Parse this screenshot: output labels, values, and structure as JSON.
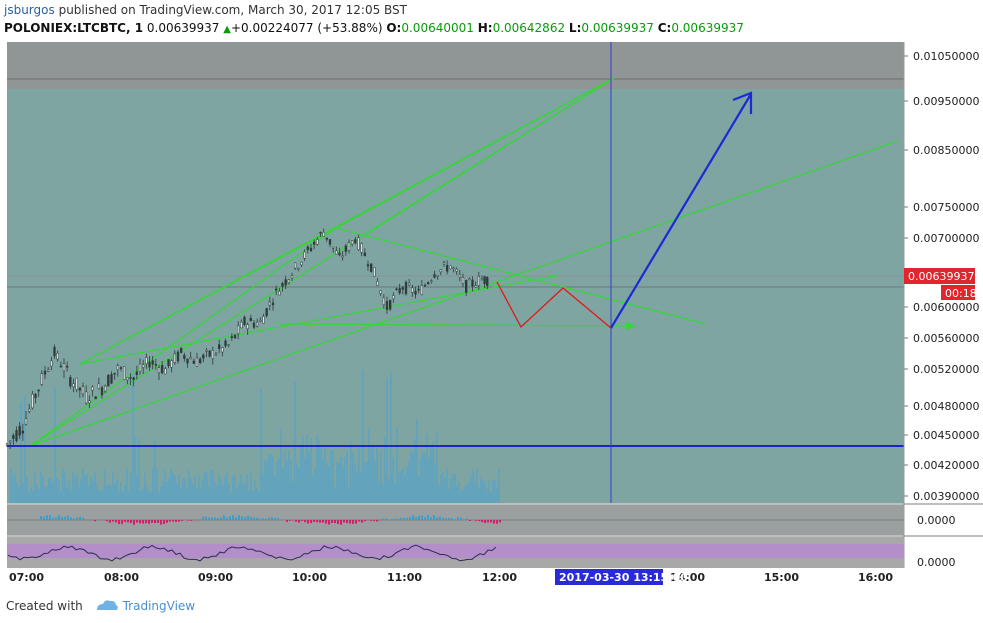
{
  "header": {
    "user": "jsburgos",
    "published": "published on TradingView.com, March 30, 2017 12:05 BST",
    "symbol": "POLONIEX:LTCBTC, 1",
    "last": "0.00639937",
    "change_arrow": "▲",
    "change": "+0.00224077 (+53.88%)",
    "o_label": "O:",
    "o_value": "0.00640001",
    "h_label": "H:",
    "h_value": "0.00642862",
    "l_label": "L:",
    "l_value": "0.00639937",
    "c_label": "C:",
    "c_value": "0.00639937"
  },
  "footer": {
    "created_with": "Created with",
    "brand": "TradingView"
  },
  "chart_data": {
    "type": "line",
    "title": "POLONIEX:LTCBTC, 1",
    "x_axis_labels": [
      "07:00",
      "08:00",
      "09:00",
      "10:00",
      "11:00",
      "12:00",
      "14:00",
      "15:00",
      "16:00"
    ],
    "x_axis_highlight_label": "2017-03-30 13:15:00",
    "y_axis_labels": [
      "0.01050000",
      "0.00950000",
      "0.00850000",
      "0.00750000",
      "0.00700000",
      "0.00600000",
      "0.00560000",
      "0.00520000",
      "0.00480000",
      "0.00450000",
      "0.00420000",
      "0.00390000"
    ],
    "y_ticks": [
      0.0105,
      0.0095,
      0.0085,
      0.0075,
      0.007,
      0.006,
      0.0056,
      0.0052,
      0.0048,
      0.0045,
      0.0042,
      0.0039
    ],
    "current_price_label": "0.00639937",
    "countdown_label": "00:18",
    "current_price": 0.00639937,
    "projection_target_time": "2017-03-30 13:15:00",
    "price_series": {
      "x": [
        "07:00",
        "07:10",
        "07:20",
        "07:30",
        "07:40",
        "07:50",
        "08:00",
        "08:10",
        "08:20",
        "08:30",
        "08:40",
        "08:50",
        "09:00",
        "09:10",
        "09:20",
        "09:30",
        "09:40",
        "09:50",
        "10:00",
        "10:10",
        "10:20",
        "10:30",
        "10:40",
        "10:50",
        "11:00",
        "11:10",
        "11:20",
        "11:30",
        "11:40",
        "11:50",
        "12:00",
        "12:05"
      ],
      "y": [
        0.0044,
        0.0046,
        0.005,
        0.0054,
        0.0051,
        0.0049,
        0.005,
        0.0052,
        0.0051,
        0.0053,
        0.0052,
        0.0054,
        0.0053,
        0.0054,
        0.0055,
        0.0058,
        0.0058,
        0.0062,
        0.0065,
        0.0068,
        0.0071,
        0.0067,
        0.007,
        0.0066,
        0.006,
        0.0063,
        0.0062,
        0.0065,
        0.0066,
        0.0063,
        0.0064,
        0.00639937
      ]
    },
    "lower_panels": [
      {
        "name": "macd",
        "label": "0.0000"
      },
      {
        "name": "stochastic",
        "label": "0.0000"
      }
    ],
    "colors": {
      "plot_background": "#7ea5a2",
      "upper_band": "#8f9695",
      "candles": "#2f3b3b",
      "trendlines": "#36d636",
      "horizontal_support": "#1f24c8",
      "projection_up": "#1a2ad6",
      "projection_zigzag": "#e01818",
      "volume": "#4aa0d0",
      "stoch_band": "#b48ec8"
    },
    "grid": false
  }
}
